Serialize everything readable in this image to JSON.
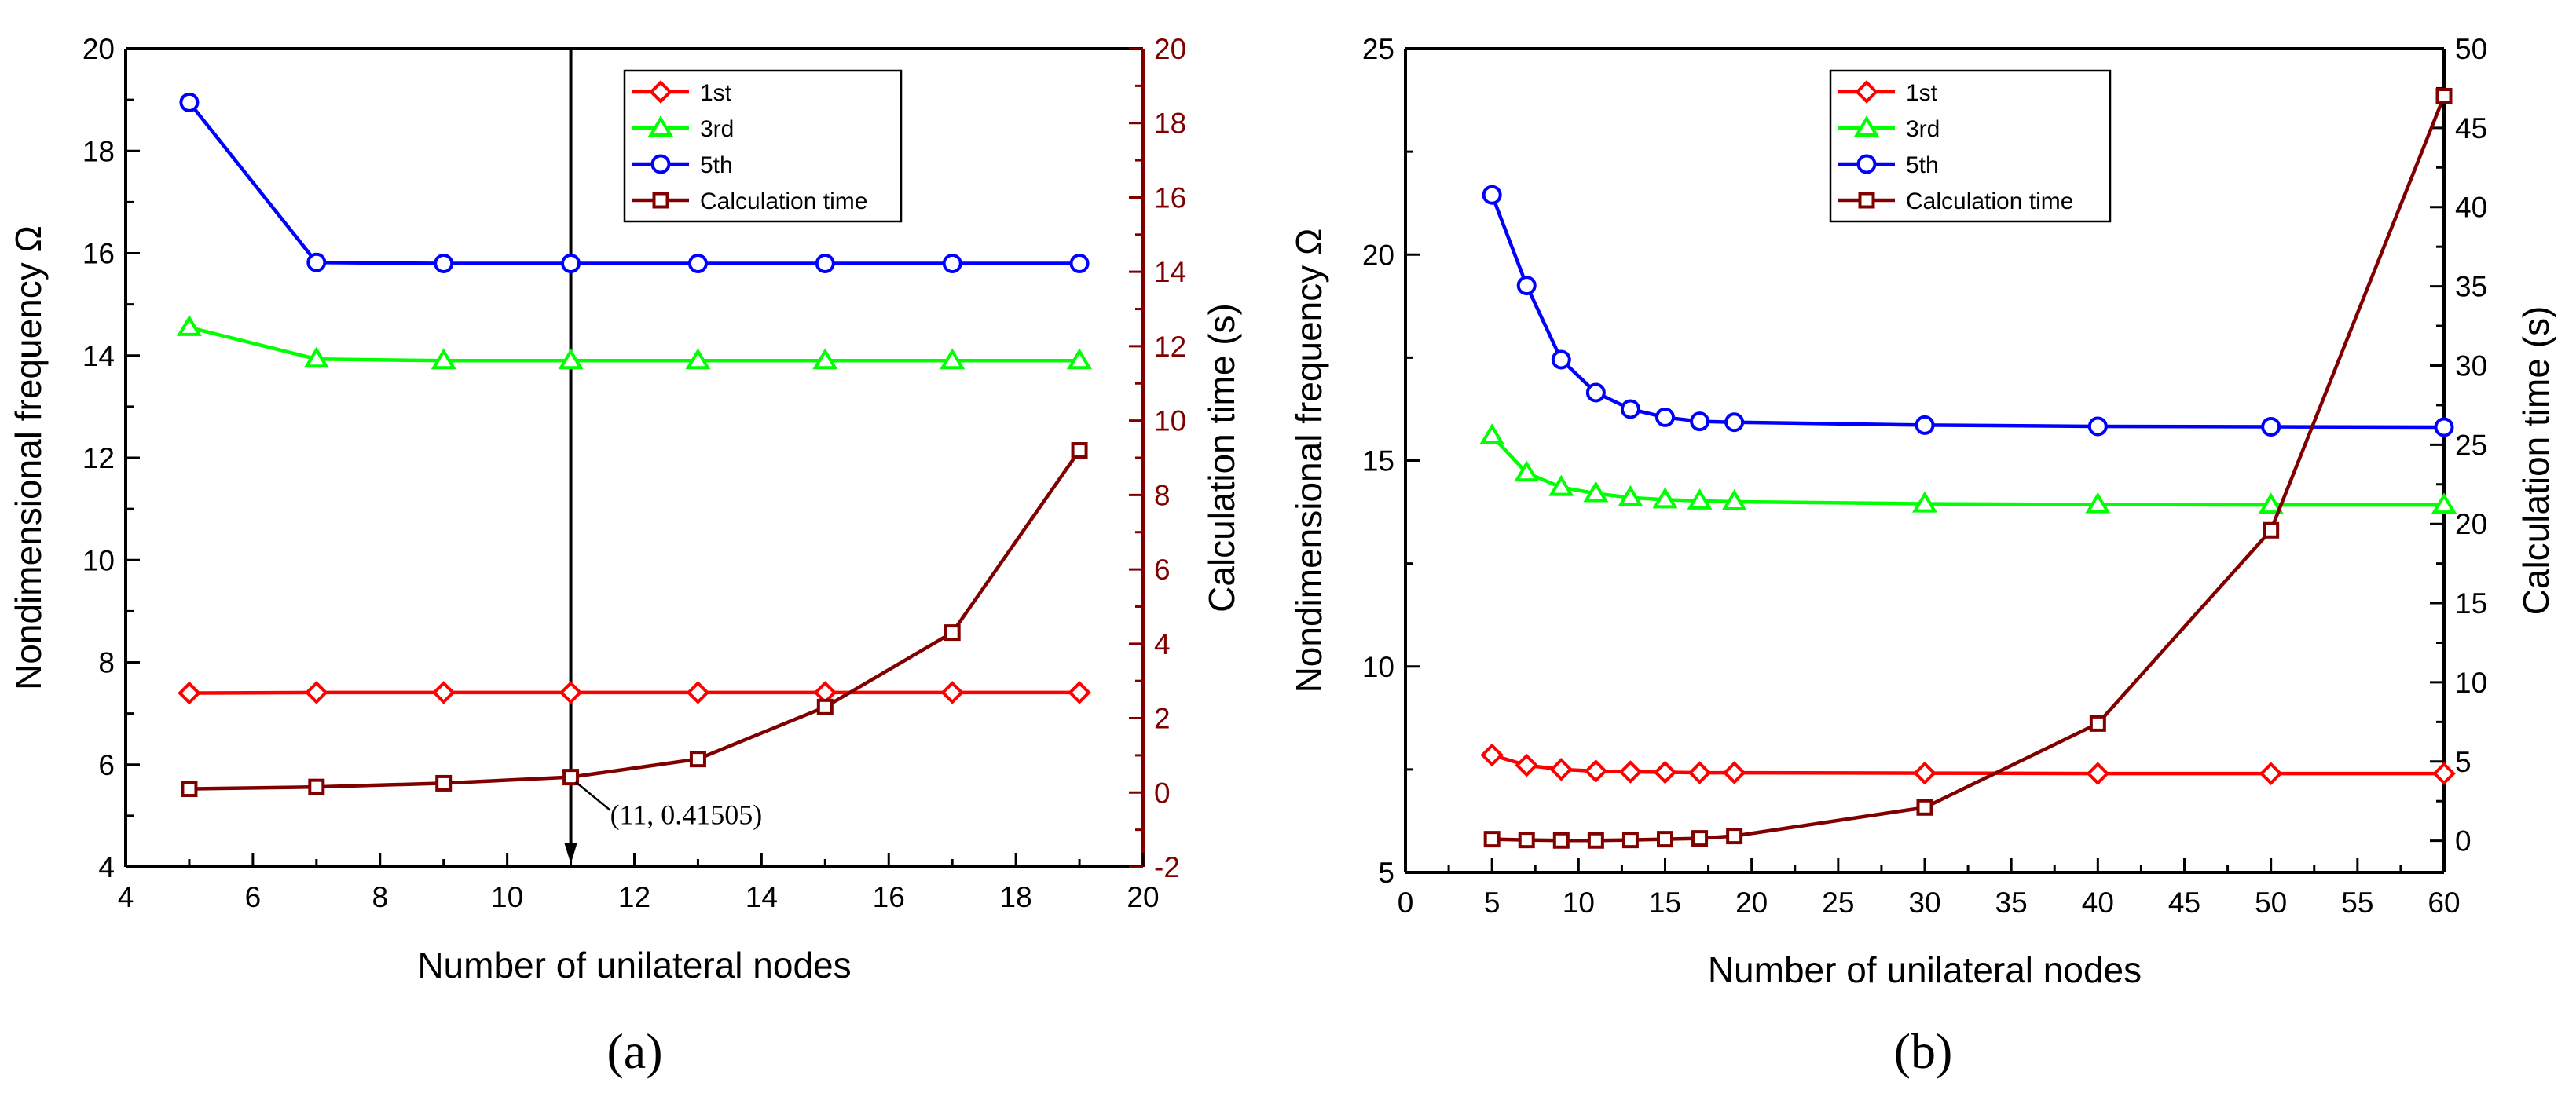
{
  "colors": {
    "first": "#ff0000",
    "third": "#00ff00",
    "fifth": "#0000ff",
    "calc": "#800000",
    "axis": "#000000"
  },
  "chart_data": [
    {
      "type": "line",
      "panel_label": "(a)",
      "xlabel": "Number of unilateral nodes",
      "ylabel": "Nondimensional frequency Ω",
      "y2label": "Calculation time (s)",
      "xlim": [
        4,
        20
      ],
      "ylim": [
        4,
        20
      ],
      "y2lim": [
        -2,
        20
      ],
      "xticks": [
        4,
        6,
        8,
        10,
        12,
        14,
        16,
        18,
        20
      ],
      "yticks": [
        4,
        6,
        8,
        10,
        12,
        14,
        16,
        18,
        20
      ],
      "y2ticks": [
        -2,
        0,
        2,
        4,
        6,
        8,
        10,
        12,
        14,
        16,
        18,
        20
      ],
      "legend_position": "top-center",
      "series": [
        {
          "name": "1st",
          "axis": "left",
          "marker": "diamond",
          "color_key": "first",
          "x": [
            5,
            7,
            9,
            11,
            13,
            15,
            17,
            19
          ],
          "y": [
            7.4,
            7.41,
            7.41,
            7.41,
            7.41,
            7.41,
            7.41,
            7.41
          ]
        },
        {
          "name": "3rd",
          "axis": "left",
          "marker": "triangle",
          "color_key": "third",
          "x": [
            5,
            7,
            9,
            11,
            13,
            15,
            17,
            19
          ],
          "y": [
            14.55,
            13.93,
            13.9,
            13.9,
            13.9,
            13.9,
            13.9,
            13.9
          ]
        },
        {
          "name": "5th",
          "axis": "left",
          "marker": "circle",
          "color_key": "fifth",
          "x": [
            5,
            7,
            9,
            11,
            13,
            15,
            17,
            19
          ],
          "y": [
            18.95,
            15.82,
            15.8,
            15.8,
            15.8,
            15.8,
            15.8,
            15.8
          ]
        },
        {
          "name": "Calculation time",
          "axis": "right",
          "marker": "square",
          "color_key": "calc",
          "x": [
            5,
            7,
            9,
            11,
            13,
            15,
            17,
            19
          ],
          "y": [
            0.1,
            0.15,
            0.25,
            0.41505,
            0.9,
            2.3,
            4.3,
            9.2
          ]
        }
      ],
      "annotation": {
        "text": "(11, 0.41505)",
        "x": 11,
        "y": 0.41505
      },
      "vline": {
        "x": 11
      }
    },
    {
      "type": "line",
      "panel_label": "(b)",
      "xlabel": "Number of unilateral nodes",
      "ylabel": "Nondimensional frequency Ω",
      "y2label": "Calculation time (s)",
      "xlim": [
        0,
        60
      ],
      "ylim": [
        5,
        25
      ],
      "y2lim": [
        -2,
        50
      ],
      "xticks": [
        0,
        5,
        10,
        15,
        20,
        25,
        30,
        35,
        40,
        45,
        50,
        55,
        60
      ],
      "yticks": [
        5,
        10,
        15,
        20,
        25
      ],
      "y2ticks": [
        0,
        5,
        10,
        15,
        20,
        25,
        30,
        35,
        40,
        45,
        50
      ],
      "legend_position": "top-center",
      "series": [
        {
          "name": "1st",
          "axis": "left",
          "marker": "diamond",
          "color_key": "first",
          "x": [
            5,
            7,
            9,
            11,
            13,
            15,
            17,
            19,
            30,
            40,
            50,
            60
          ],
          "y": [
            7.85,
            7.6,
            7.5,
            7.46,
            7.44,
            7.43,
            7.42,
            7.42,
            7.41,
            7.4,
            7.4,
            7.4
          ]
        },
        {
          "name": "3rd",
          "axis": "left",
          "marker": "triangle",
          "color_key": "third",
          "x": [
            5,
            7,
            9,
            11,
            13,
            15,
            17,
            19,
            30,
            40,
            50,
            60
          ],
          "y": [
            15.6,
            14.7,
            14.35,
            14.2,
            14.1,
            14.05,
            14.02,
            14.0,
            13.95,
            13.93,
            13.92,
            13.92
          ]
        },
        {
          "name": "5th",
          "axis": "left",
          "marker": "circle",
          "color_key": "fifth",
          "x": [
            5,
            7,
            9,
            11,
            13,
            15,
            17,
            19,
            30,
            40,
            50,
            60
          ],
          "y": [
            21.45,
            19.25,
            17.45,
            16.65,
            16.25,
            16.05,
            15.95,
            15.93,
            15.86,
            15.83,
            15.82,
            15.81
          ]
        },
        {
          "name": "Calculation time",
          "axis": "right",
          "marker": "square",
          "color_key": "calc",
          "x": [
            5,
            7,
            9,
            11,
            13,
            15,
            17,
            19,
            30,
            40,
            50,
            60
          ],
          "y": [
            0.1,
            0.05,
            0.02,
            0.02,
            0.05,
            0.1,
            0.15,
            0.3,
            2.1,
            7.4,
            19.6,
            47.0
          ]
        }
      ]
    }
  ]
}
